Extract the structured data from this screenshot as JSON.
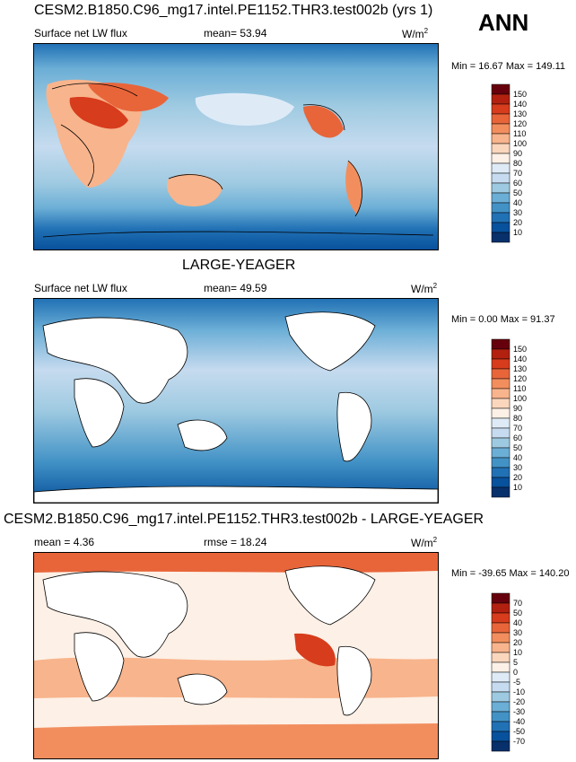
{
  "season": "ANN",
  "panels": [
    {
      "title": "CESM2.B1850.C96_mg17.intel.PE1152.THR3.test002b (yrs 1)",
      "left_label": "Surface net LW flux",
      "center_label": "mean=  53.94",
      "units": "W/m",
      "units_sup": "2",
      "minmax": "Min =  16.67 Max = 149.11",
      "levels": [
        "150",
        "140",
        "130",
        "120",
        "110",
        "100",
        "90",
        "80",
        "70",
        "60",
        "50",
        "40",
        "30",
        "20",
        "10"
      ]
    },
    {
      "title": "LARGE-YEAGER",
      "left_label": "Surface net LW flux",
      "center_label": "mean=  49.59",
      "units": "W/m",
      "units_sup": "2",
      "minmax": "Min =   0.00 Max =  91.37",
      "levels": [
        "150",
        "140",
        "130",
        "120",
        "110",
        "100",
        "90",
        "80",
        "70",
        "60",
        "50",
        "40",
        "30",
        "20",
        "10"
      ]
    },
    {
      "title": "CESM2.B1850.C96_mg17.intel.PE1152.THR3.test002b - LARGE-YEAGER",
      "left_label": "mean =   4.36",
      "center_label": "rmse =  18.24",
      "units": "W/m",
      "units_sup": "2",
      "minmax": "Min = -39.65 Max = 140.20",
      "levels": [
        "70",
        "50",
        "40",
        "30",
        "20",
        "10",
        "5",
        "0",
        "-5",
        "-10",
        "-20",
        "-30",
        "-40",
        "-50",
        "-70"
      ]
    }
  ],
  "colors": {
    "abs_scale": [
      "#67000d",
      "#b2210f",
      "#d73c1c",
      "#e8653a",
      "#f28e5e",
      "#f8b48c",
      "#fad6bd",
      "#fdf0e6",
      "#deebf7",
      "#c6dbef",
      "#9ecae1",
      "#6baed6",
      "#4292c6",
      "#2171b5",
      "#08519c",
      "#08306b"
    ],
    "diff_scale": [
      "#67000d",
      "#b2210f",
      "#d73c1c",
      "#e8653a",
      "#f28e5e",
      "#f8b48c",
      "#fad6bd",
      "#fdf0e6",
      "#deebf7",
      "#c6dbef",
      "#9ecae1",
      "#6baed6",
      "#4292c6",
      "#2171b5",
      "#08519c",
      "#08306b"
    ],
    "land_mask": "#ffffff",
    "coast": "#000000"
  }
}
